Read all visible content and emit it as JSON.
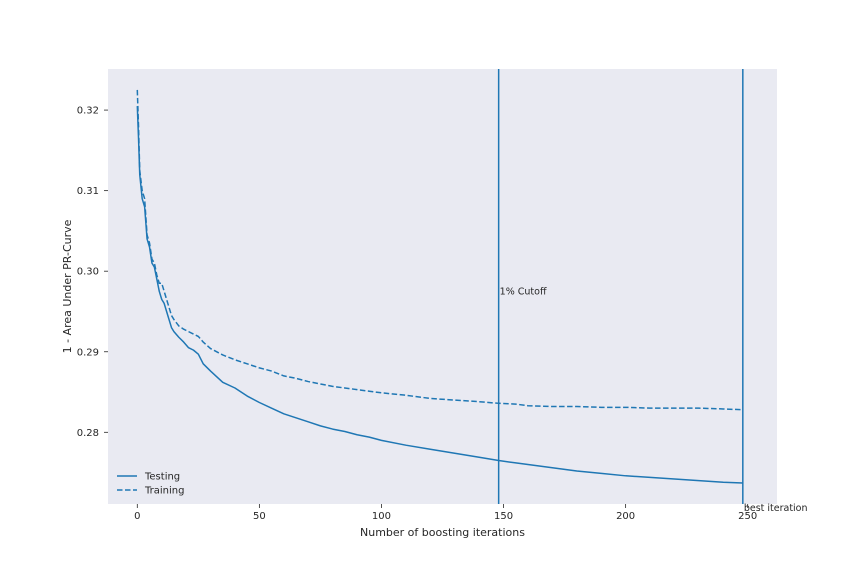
{
  "chart_data": {
    "type": "line",
    "title": "",
    "xlabel": "Number of boosting iterations",
    "ylabel": "1 - Area Under PR-Curve",
    "xlim": [
      -12,
      262
    ],
    "ylim": [
      0.2711,
      0.3251
    ],
    "x_ticks": [
      0,
      50,
      100,
      150,
      200,
      250
    ],
    "y_ticks": [
      0.28,
      0.29,
      0.3,
      0.31,
      0.32
    ],
    "x_tick_labels": [
      "0",
      "50",
      "100",
      "150",
      "200",
      "250"
    ],
    "y_tick_labels": [
      "0.28",
      "0.29",
      "0.30",
      "0.31",
      "0.32"
    ],
    "grid": false,
    "background": "#e9eaf2",
    "line_color": "#1f77b4",
    "legend_position": "lower-left",
    "series": [
      {
        "name": "Testing",
        "style": "solid",
        "x": [
          0,
          0.5,
          1,
          2,
          3,
          4,
          5,
          6,
          7,
          8,
          9,
          10,
          11,
          12,
          13,
          14,
          15,
          17,
          19,
          21,
          23,
          25,
          27,
          30,
          35,
          40,
          45,
          50,
          55,
          60,
          65,
          70,
          75,
          80,
          85,
          90,
          95,
          100,
          110,
          120,
          130,
          140,
          148,
          155,
          160,
          170,
          180,
          190,
          200,
          210,
          220,
          230,
          240,
          248
        ],
        "values": [
          0.3205,
          0.3165,
          0.312,
          0.309,
          0.308,
          0.304,
          0.303,
          0.301,
          0.3005,
          0.299,
          0.2975,
          0.2965,
          0.296,
          0.295,
          0.294,
          0.293,
          0.2925,
          0.2918,
          0.2912,
          0.2905,
          0.2902,
          0.2897,
          0.2885,
          0.2876,
          0.2862,
          0.2855,
          0.2845,
          0.2837,
          0.283,
          0.2823,
          0.2818,
          0.2813,
          0.2808,
          0.2804,
          0.2801,
          0.2797,
          0.2794,
          0.279,
          0.2784,
          0.2779,
          0.2774,
          0.2769,
          0.2765,
          0.2762,
          0.276,
          0.2756,
          0.2752,
          0.2749,
          0.2746,
          0.2744,
          0.2742,
          0.274,
          0.2738,
          0.2737
        ]
      },
      {
        "name": "Training",
        "style": "dashed",
        "x": [
          0,
          0.5,
          1,
          2,
          3,
          4,
          5,
          6,
          7,
          8,
          9,
          10,
          11,
          12,
          13,
          14,
          15,
          17,
          19,
          21,
          23,
          25,
          27,
          30,
          35,
          40,
          45,
          50,
          55,
          60,
          65,
          70,
          75,
          80,
          85,
          90,
          95,
          100,
          110,
          120,
          130,
          140,
          148,
          155,
          160,
          170,
          180,
          190,
          200,
          210,
          220,
          230,
          240,
          248
        ],
        "values": [
          0.3225,
          0.318,
          0.3125,
          0.31,
          0.309,
          0.3045,
          0.3035,
          0.3015,
          0.301,
          0.2995,
          0.2985,
          0.2985,
          0.2975,
          0.2965,
          0.2955,
          0.2945,
          0.294,
          0.2932,
          0.2928,
          0.2925,
          0.2922,
          0.2919,
          0.2912,
          0.2904,
          0.2896,
          0.289,
          0.2885,
          0.288,
          0.2876,
          0.287,
          0.2867,
          0.2863,
          0.286,
          0.2857,
          0.2855,
          0.2853,
          0.2851,
          0.2849,
          0.2846,
          0.2842,
          0.284,
          0.2838,
          0.2836,
          0.2835,
          0.2833,
          0.2832,
          0.2832,
          0.2831,
          0.2831,
          0.283,
          0.283,
          0.283,
          0.2829,
          0.2828
        ]
      }
    ],
    "vlines": [
      {
        "x": 148,
        "label": "1% Cutoff",
        "label_y": 0.2975
      },
      {
        "x": 248,
        "label": "best iteration",
        "label_y": 0.2706
      }
    ]
  }
}
